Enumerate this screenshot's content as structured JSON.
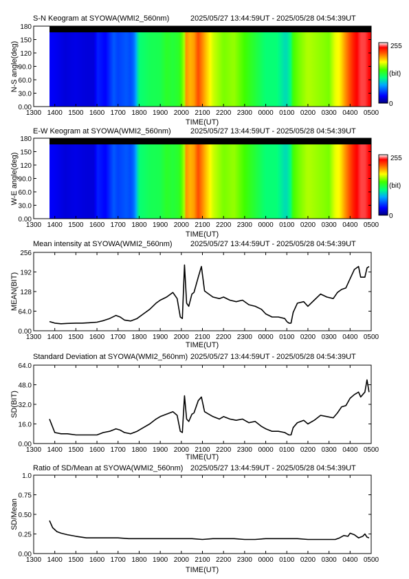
{
  "station": "SYOWA(WMI2_560nm)",
  "time_range": "2025/05/27 13:44:59UT - 2025/05/28 04:54:39UT",
  "x_ticks": [
    "1300",
    "1400",
    "1500",
    "1600",
    "1700",
    "1800",
    "1900",
    "2000",
    "2100",
    "2200",
    "2300",
    "0000",
    "0100",
    "0200",
    "0300",
    "0400",
    "0500"
  ],
  "x_label": "TIME(UT)",
  "panels": [
    {
      "title": "S-N Keogram at SYOWA(WMI2_560nm)",
      "ylabel": "N-S angle(deg)",
      "y_ticks": [
        "0.00",
        "30.0",
        "60.0",
        "90.0",
        "120",
        "150",
        "180"
      ],
      "colorbar": {
        "max": "255",
        "unit": "(bit)",
        "min": "0"
      }
    },
    {
      "title": "E-W Keogram at SYOWA(WMI2_560nm)",
      "ylabel": "W-E angle(deg)",
      "y_ticks": [
        "0.00",
        "30.0",
        "60.0",
        "90.0",
        "120",
        "150",
        "180"
      ],
      "colorbar": {
        "max": "255",
        "unit": "(bit)",
        "min": "0"
      }
    },
    {
      "title": "Mean intensity at SYOWA(WMI2_560nm)",
      "ylabel": "MEAN(BIT)",
      "y_ticks": [
        "0.00",
        "64.0",
        "128",
        "192",
        "256"
      ]
    },
    {
      "title": "Standard Deviation at SYOWA(WMI2_560nm)",
      "ylabel": "SD(BIT)",
      "y_ticks": [
        "0.00",
        "16.0",
        "32.0",
        "48.0",
        "64.0"
      ]
    },
    {
      "title": "Ratio of SD/Mean at SYOWA(WMI2_560nm)",
      "ylabel": "SD/Mean",
      "y_ticks": [
        "0.00",
        "0.25",
        "0.50",
        "0.75",
        "1.0"
      ]
    }
  ],
  "chart_data": [
    {
      "type": "heatmap",
      "title": "S-N Keogram at SYOWA(WMI2_560nm)",
      "xlabel": "TIME(UT)",
      "ylabel": "N-S angle(deg)",
      "x_range_hours": [
        13.0,
        29.0
      ],
      "ylim": [
        0,
        180
      ],
      "colorbar_range": [
        0,
        255
      ],
      "data_start_hour": 13.75,
      "intensity_profile": {
        "hours": [
          13.75,
          14.0,
          14.5,
          15.0,
          15.5,
          15.9,
          16.0,
          16.4,
          16.8,
          17.0,
          17.4,
          17.6,
          17.8,
          18.0,
          18.5,
          19.0,
          19.3,
          19.6,
          19.9,
          20.15,
          20.2,
          20.4,
          20.6,
          20.8,
          21.0,
          21.2,
          21.5,
          22.0,
          22.5,
          23.0,
          23.5,
          24.0,
          24.5,
          24.9,
          25.0,
          25.2,
          25.3,
          25.6,
          26.0,
          26.5,
          27.0,
          27.3,
          27.5,
          27.8,
          28.0,
          28.2,
          28.5,
          28.7,
          28.9
        ],
        "values": [
          30,
          28,
          22,
          25,
          22,
          22,
          40,
          30,
          55,
          48,
          55,
          50,
          65,
          110,
          118,
          120,
          130,
          125,
          130,
          160,
          200,
          190,
          195,
          215,
          200,
          185,
          165,
          150,
          155,
          140,
          125,
          110,
          110,
          95,
          95,
          110,
          140,
          150,
          160,
          155,
          150,
          170,
          175,
          200,
          215,
          230,
          240,
          240,
          235
        ]
      }
    },
    {
      "type": "heatmap",
      "title": "E-W Keogram at SYOWA(WMI2_560nm)",
      "xlabel": "TIME(UT)",
      "ylabel": "W-E angle(deg)",
      "x_range_hours": [
        13.0,
        29.0
      ],
      "ylim": [
        0,
        180
      ],
      "colorbar_range": [
        0,
        255
      ],
      "data_start_hour": 13.75,
      "intensity_profile": {
        "hours": [
          13.75,
          14.0,
          14.5,
          15.0,
          15.5,
          15.9,
          16.0,
          16.4,
          16.8,
          17.0,
          17.4,
          17.6,
          17.8,
          18.0,
          18.5,
          19.0,
          19.3,
          19.6,
          19.9,
          20.15,
          20.2,
          20.4,
          20.6,
          20.8,
          21.0,
          21.2,
          21.5,
          22.0,
          22.5,
          23.0,
          23.5,
          24.0,
          24.5,
          24.9,
          25.0,
          25.2,
          25.3,
          25.6,
          26.0,
          26.5,
          27.0,
          27.3,
          27.5,
          27.8,
          28.0,
          28.2,
          28.5,
          28.7,
          28.9
        ],
        "values": [
          30,
          28,
          22,
          25,
          22,
          22,
          40,
          30,
          55,
          48,
          55,
          50,
          65,
          110,
          118,
          120,
          130,
          125,
          130,
          160,
          200,
          190,
          195,
          215,
          200,
          185,
          165,
          150,
          155,
          140,
          125,
          110,
          110,
          95,
          95,
          110,
          140,
          150,
          160,
          155,
          150,
          170,
          175,
          200,
          215,
          230,
          240,
          240,
          235
        ]
      }
    },
    {
      "type": "line",
      "title": "Mean intensity at SYOWA(WMI2_560nm)",
      "xlabel": "TIME(UT)",
      "ylabel": "MEAN(BIT)",
      "x_range_hours": [
        13.0,
        29.0
      ],
      "ylim": [
        0,
        256
      ],
      "series": [
        {
          "x": [
            13.75,
            14.0,
            14.3,
            14.6,
            15.0,
            15.3,
            15.6,
            16.0,
            16.3,
            16.6,
            16.9,
            17.1,
            17.3,
            17.6,
            17.9,
            18.2,
            18.5,
            18.8,
            19.0,
            19.3,
            19.6,
            19.8,
            19.95,
            20.05,
            20.15,
            20.25,
            20.35,
            20.5,
            20.6,
            20.8,
            20.95,
            21.1,
            21.3,
            21.5,
            21.8,
            22.0,
            22.3,
            22.6,
            22.9,
            23.2,
            23.5,
            23.8,
            24.0,
            24.3,
            24.6,
            24.9,
            25.0,
            25.1,
            25.2,
            25.3,
            25.5,
            25.8,
            26.0,
            26.3,
            26.6,
            26.9,
            27.2,
            27.4,
            27.6,
            27.8,
            28.0,
            28.2,
            28.4,
            28.5,
            28.7,
            28.8,
            28.9
          ],
          "y": [
            30,
            25,
            23,
            24,
            25,
            25,
            26,
            28,
            33,
            40,
            50,
            45,
            35,
            32,
            40,
            55,
            70,
            90,
            100,
            110,
            125,
            105,
            45,
            40,
            215,
            90,
            80,
            120,
            125,
            175,
            210,
            130,
            120,
            110,
            105,
            110,
            100,
            95,
            100,
            85,
            80,
            70,
            55,
            45,
            45,
            40,
            30,
            25,
            25,
            60,
            90,
            95,
            80,
            100,
            120,
            110,
            105,
            125,
            135,
            140,
            170,
            200,
            210,
            175,
            175,
            205,
            210
          ]
        }
      ]
    },
    {
      "type": "line",
      "title": "Standard Deviation at SYOWA(WMI2_560nm)",
      "xlabel": "TIME(UT)",
      "ylabel": "SD(BIT)",
      "x_range_hours": [
        13.0,
        29.0
      ],
      "ylim": [
        0,
        64
      ],
      "series": [
        {
          "x": [
            13.75,
            14.0,
            14.3,
            14.6,
            15.0,
            15.3,
            15.6,
            16.0,
            16.3,
            16.6,
            16.9,
            17.1,
            17.3,
            17.6,
            17.9,
            18.2,
            18.5,
            18.8,
            19.0,
            19.3,
            19.6,
            19.8,
            19.95,
            20.05,
            20.15,
            20.25,
            20.35,
            20.5,
            20.6,
            20.8,
            20.95,
            21.1,
            21.3,
            21.5,
            21.8,
            22.0,
            22.3,
            22.6,
            22.9,
            23.2,
            23.5,
            23.8,
            24.0,
            24.3,
            24.6,
            24.9,
            25.0,
            25.1,
            25.2,
            25.3,
            25.5,
            25.8,
            26.0,
            26.3,
            26.6,
            26.9,
            27.2,
            27.4,
            27.6,
            27.8,
            28.0,
            28.2,
            28.4,
            28.5,
            28.7,
            28.8,
            28.9
          ],
          "y": [
            20,
            9,
            8,
            8,
            7,
            7,
            7,
            7,
            9,
            10,
            12,
            11,
            9,
            8,
            10,
            13,
            16,
            20,
            22,
            24,
            26,
            23,
            10,
            9,
            39,
            20,
            18,
            24,
            25,
            35,
            38,
            26,
            24,
            22,
            20,
            22,
            20,
            19,
            20,
            17,
            18,
            14,
            12,
            10,
            10,
            9,
            8,
            7,
            7,
            13,
            17,
            19,
            16,
            19,
            23,
            22,
            21,
            25,
            30,
            31,
            37,
            40,
            42,
            38,
            42,
            52,
            42
          ]
        }
      ]
    },
    {
      "type": "line",
      "title": "Ratio of SD/Mean at SYOWA(WMI2_560nm)",
      "xlabel": "TIME(UT)",
      "ylabel": "SD/Mean",
      "x_range_hours": [
        13.0,
        29.0
      ],
      "ylim": [
        0,
        1.0
      ],
      "series": [
        {
          "x": [
            13.75,
            13.9,
            14.1,
            14.3,
            14.6,
            15.0,
            15.5,
            16.0,
            16.5,
            17.0,
            17.5,
            18.0,
            18.5,
            19.0,
            19.5,
            20.0,
            20.5,
            21.0,
            21.5,
            22.0,
            22.5,
            23.0,
            23.5,
            24.0,
            24.5,
            25.0,
            25.5,
            26.0,
            26.5,
            27.0,
            27.3,
            27.5,
            27.7,
            27.9,
            28.0,
            28.2,
            28.4,
            28.6,
            28.7,
            28.8,
            28.9
          ],
          "y": [
            0.42,
            0.33,
            0.28,
            0.26,
            0.24,
            0.22,
            0.2,
            0.2,
            0.2,
            0.2,
            0.19,
            0.19,
            0.19,
            0.19,
            0.19,
            0.19,
            0.19,
            0.18,
            0.19,
            0.19,
            0.19,
            0.18,
            0.18,
            0.19,
            0.19,
            0.19,
            0.19,
            0.18,
            0.18,
            0.18,
            0.18,
            0.2,
            0.23,
            0.22,
            0.26,
            0.24,
            0.2,
            0.22,
            0.25,
            0.21,
            0.2
          ]
        }
      ]
    }
  ]
}
